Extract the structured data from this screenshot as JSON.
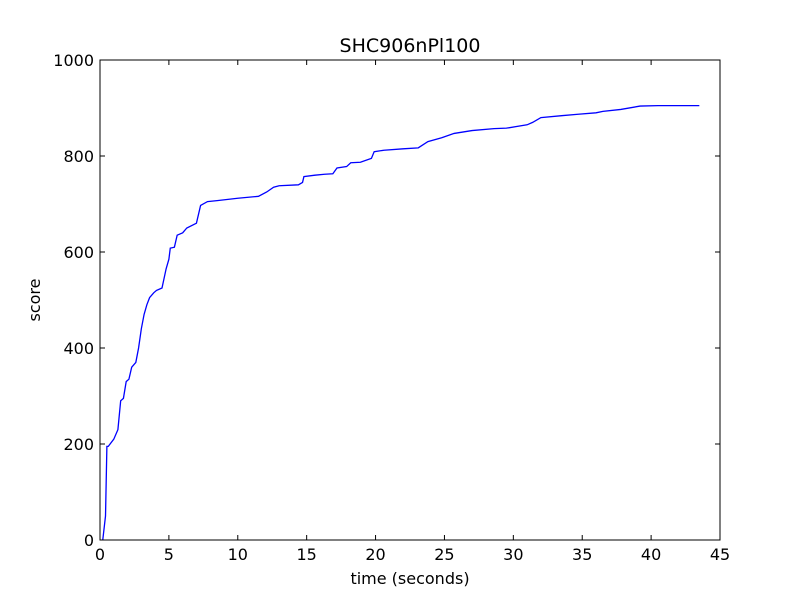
{
  "chart_data": {
    "type": "line",
    "title": "SHC906nPl100",
    "xlabel": "time (seconds)",
    "ylabel": "score",
    "xlim": [
      0,
      45
    ],
    "ylim": [
      0,
      1000
    ],
    "xticks": [
      0,
      5,
      10,
      15,
      20,
      25,
      30,
      35,
      40,
      45
    ],
    "yticks": [
      0,
      200,
      400,
      600,
      800,
      1000
    ],
    "grid": false,
    "legend": "none",
    "line_color": "#0000ff",
    "series": [
      {
        "x": [
          0.2,
          0.4,
          0.5,
          0.6,
          1.0,
          1.3,
          1.5,
          1.7,
          1.9,
          2.1,
          2.3,
          2.6,
          2.8,
          3.0,
          3.2,
          3.4,
          3.6,
          3.9,
          4.1,
          4.5,
          4.8,
          5.0,
          5.1,
          5.4,
          5.6,
          6.0,
          6.3,
          7.0,
          7.3,
          7.8,
          8.5,
          10.0,
          11.5,
          12.1,
          12.6,
          13.0,
          14.4,
          14.7,
          14.8,
          15.6,
          16.3,
          16.9,
          17.2,
          17.9,
          18.2,
          18.9,
          19.7,
          19.9,
          20.6,
          22.0,
          23.1,
          23.8,
          24.8,
          25.7,
          27.0,
          28.6,
          29.5,
          31.0,
          31.4,
          32.0,
          33.5,
          34.7,
          36.0,
          36.5,
          37.8,
          39.2,
          40.5,
          43.5
        ],
        "y": [
          0,
          50,
          195,
          195,
          210,
          230,
          290,
          295,
          330,
          335,
          360,
          370,
          400,
          440,
          470,
          490,
          505,
          515,
          520,
          525,
          565,
          585,
          608,
          610,
          635,
          640,
          650,
          660,
          697,
          705,
          707,
          712,
          716,
          725,
          735,
          738,
          740,
          745,
          757,
          760,
          762,
          763,
          775,
          778,
          786,
          787,
          795,
          809,
          812,
          815,
          817,
          830,
          838,
          847,
          853,
          857,
          858,
          865,
          870,
          880,
          884,
          887,
          890,
          893,
          897,
          904,
          905,
          905
        ]
      }
    ]
  }
}
